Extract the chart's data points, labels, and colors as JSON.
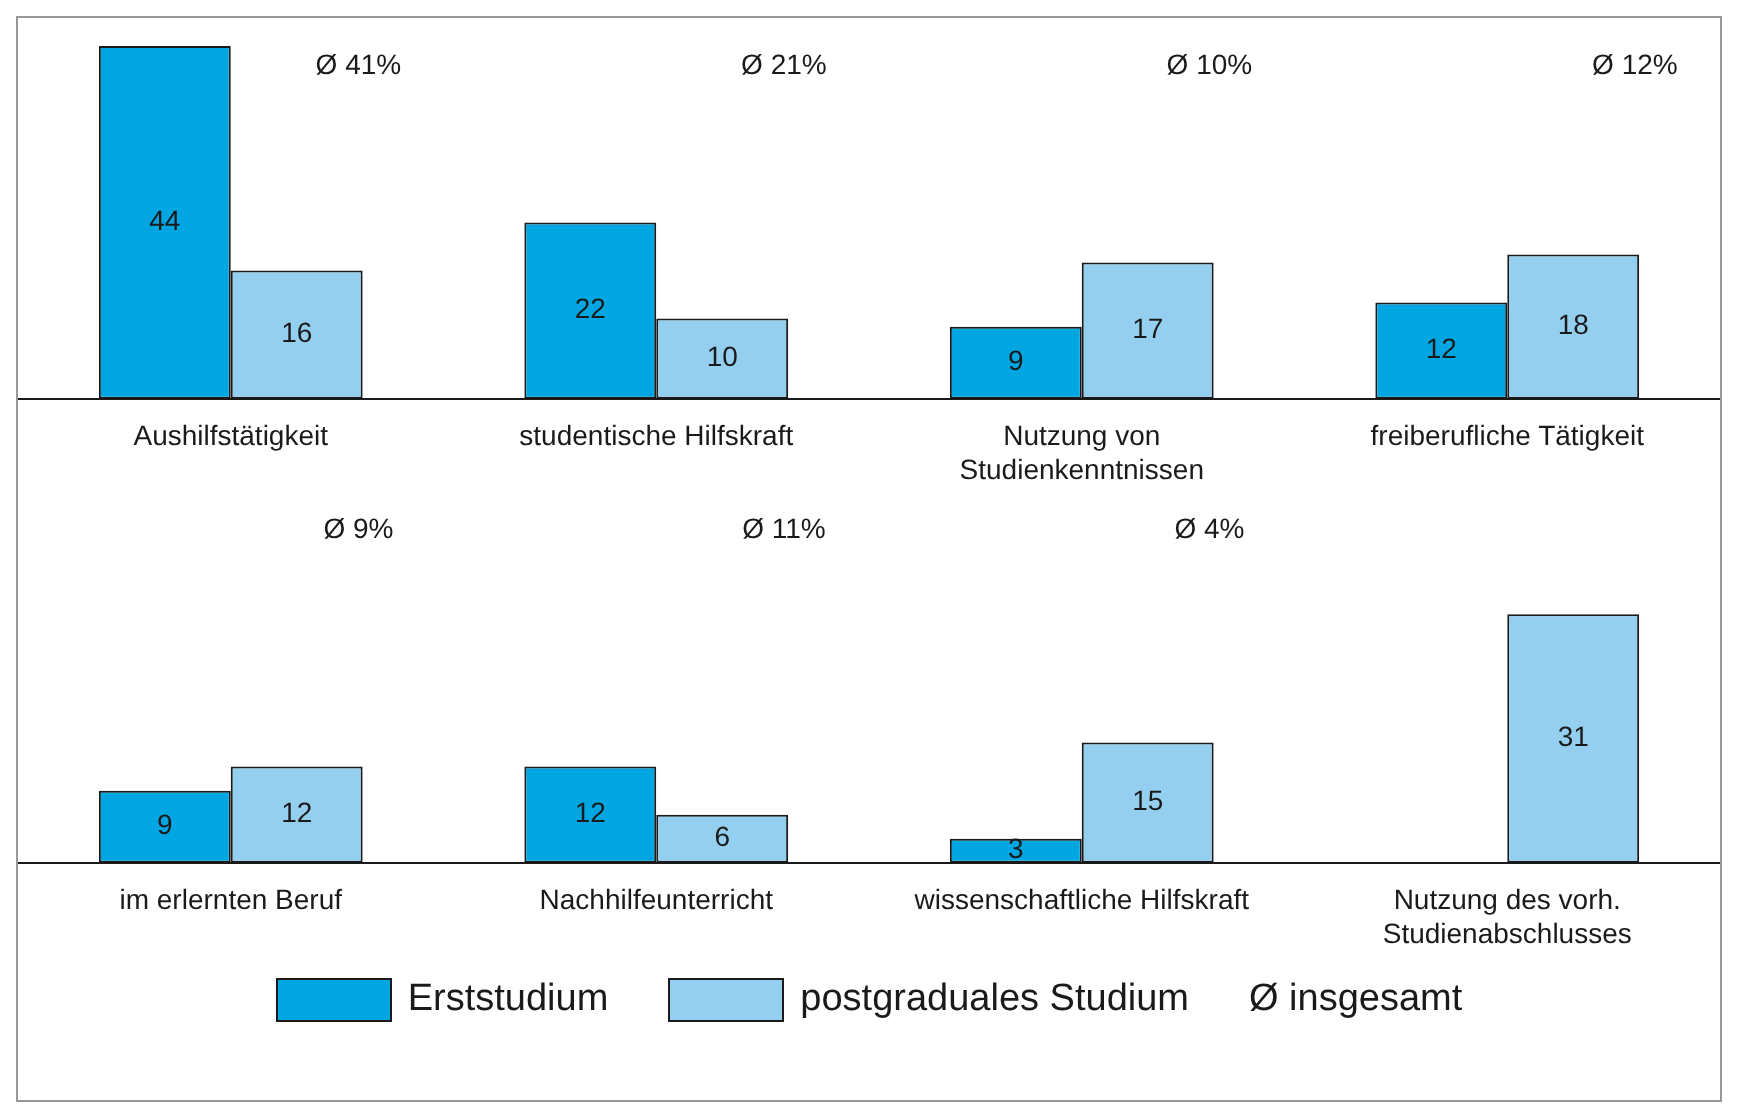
{
  "chart_data": [
    {
      "type": "bar",
      "categories": [
        "Aushilfstätigkeit",
        "studentische Hilfskraft",
        "Nutzung von Studienkenntnissen",
        "freiberufliche Tätigkeit"
      ],
      "series": [
        {
          "color": "#00a6e2",
          "values": [
            44,
            22,
            9,
            12
          ]
        },
        {
          "color": "#95cff0",
          "values": [
            16,
            10,
            17,
            18
          ]
        }
      ],
      "data_labels": true,
      "annotations": [
        "Ø 41%",
        "Ø 21%",
        "Ø 10%",
        "Ø 12%"
      ]
    },
    {
      "type": "bar",
      "categories": [
        "im erlernten Beruf",
        "Nachhilfeunterricht",
        "wissenschaftliche Hilfskraft",
        "Nutzung des vorh. Studienabschlusses"
      ],
      "series": [
        {
          "name": "Erststudium",
          "color": "#00a6e2",
          "values": [
            9,
            12,
            3,
            null
          ]
        },
        {
          "name": "postgraduales Studium",
          "color": "#95cff0",
          "values": [
            12,
            6,
            15,
            31
          ]
        }
      ],
      "data_labels": true,
      "annotations": [
        "Ø 9%",
        "Ø 11%",
        "Ø 4%"
      ],
      "legend": "bottom",
      "legend_title": "Ø insgesamt"
    }
  ]
}
